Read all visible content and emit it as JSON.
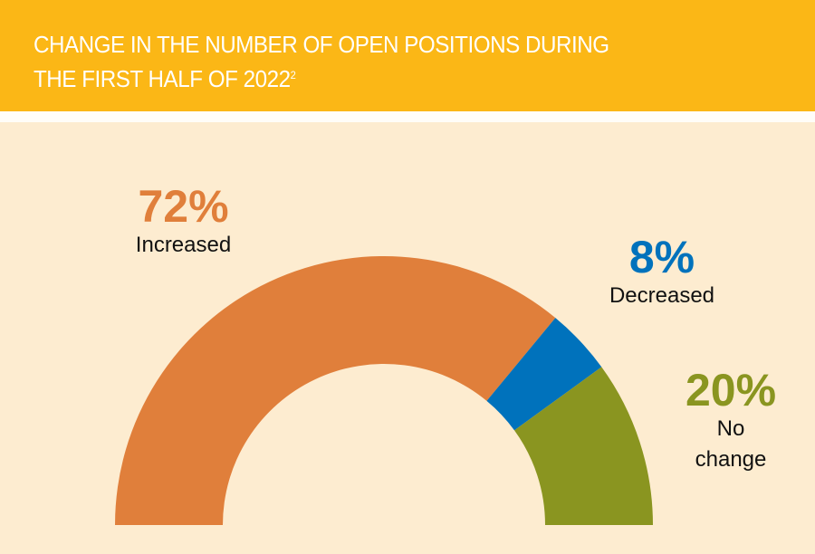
{
  "header": {
    "title_line1": "CHANGE IN THE NUMBER OF OPEN POSITIONS DURING",
    "title_line2": "THE FIRST HALF OF 2022",
    "footnote": "2"
  },
  "colors": {
    "header": "#fbb716",
    "background": "#fdecd0"
  },
  "chart_data": {
    "type": "pie",
    "variant": "semi-donut",
    "title": "CHANGE IN THE NUMBER OF OPEN POSITIONS DURING THE FIRST HALF OF 2022",
    "slices": [
      {
        "label": "Increased",
        "value": 72,
        "value_label": "72%",
        "color": "#e07f3b"
      },
      {
        "label": "Decreased",
        "value": 8,
        "value_label": "8%",
        "color": "#0072bc"
      },
      {
        "label": "No change",
        "value": 20,
        "value_label": "20%",
        "label_lines": [
          "No",
          "change"
        ],
        "color": "#8a9520"
      }
    ]
  }
}
